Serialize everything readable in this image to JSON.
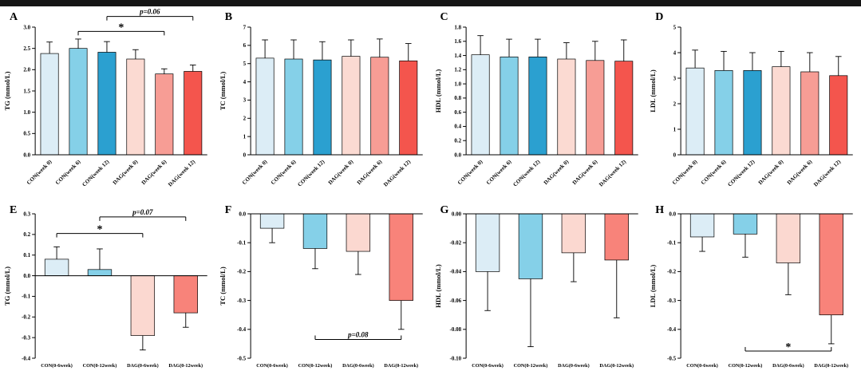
{
  "page": {
    "background": "#ffffff",
    "topbar_color": "#151515"
  },
  "colors": {
    "con_week0": "#dcedf6",
    "con_week6": "#85d0e8",
    "con_week12": "#2ba0d0",
    "dag_week0": "#fbdad2",
    "dag_week6": "#f79d95",
    "dag_week12": "#f4554d",
    "axis": "#000000",
    "error_bar": "#000000"
  },
  "chart_data": [
    {
      "type": "bar",
      "panel": "A",
      "ylabel": "TG (mmol/L)",
      "ylim": [
        0,
        3.0
      ],
      "ytick_step": 0.5,
      "ytick_decimals": 1,
      "categories": [
        "CON(week 0)",
        "CON(week 6)",
        "CON(week 12)",
        "DAG(week 0)",
        "DAG(week 6)",
        "DAG(week 12)"
      ],
      "values": [
        2.38,
        2.5,
        2.41,
        2.25,
        1.9,
        1.96
      ],
      "errors": [
        0.27,
        0.22,
        0.25,
        0.22,
        0.12,
        0.15
      ],
      "bar_colors": [
        "#dcedf6",
        "#85d0e8",
        "#2ba0d0",
        "#fbdad2",
        "#f79d95",
        "#f4554d"
      ],
      "annotations": [
        {
          "from": 2,
          "to": 5,
          "y": 3.25,
          "label": "p=0.06",
          "tick": "down"
        },
        {
          "from": 1,
          "to": 4,
          "y": 2.9,
          "label": "*",
          "tick": "down"
        }
      ]
    },
    {
      "type": "bar",
      "panel": "B",
      "ylabel": "TC (mmol/L)",
      "ylim": [
        0,
        7
      ],
      "ytick_step": 1,
      "ytick_decimals": 0,
      "categories": [
        "CON(week 0)",
        "CON(week 6)",
        "CON(week 12)",
        "DAG(week 0)",
        "DAG(week 6)",
        "DAG(week 12)"
      ],
      "values": [
        5.3,
        5.25,
        5.2,
        5.4,
        5.35,
        5.15
      ],
      "errors": [
        1.0,
        1.05,
        1.0,
        0.9,
        1.0,
        0.95
      ],
      "bar_colors": [
        "#dcedf6",
        "#85d0e8",
        "#2ba0d0",
        "#fbdad2",
        "#f79d95",
        "#f4554d"
      ],
      "annotations": []
    },
    {
      "type": "bar",
      "panel": "C",
      "ylabel": "HDL (mmol/L)",
      "ylim": [
        0,
        1.8
      ],
      "ytick_step": 0.2,
      "ytick_decimals": 1,
      "categories": [
        "CON(week 0)",
        "CON(week 6)",
        "CON(week 12)",
        "DAG(week 0)",
        "DAG(week 6)",
        "DAG(week 12)"
      ],
      "values": [
        1.41,
        1.38,
        1.38,
        1.35,
        1.33,
        1.32
      ],
      "errors": [
        0.27,
        0.25,
        0.25,
        0.23,
        0.27,
        0.3
      ],
      "bar_colors": [
        "#dcedf6",
        "#85d0e8",
        "#2ba0d0",
        "#fbdad2",
        "#f79d95",
        "#f4554d"
      ],
      "annotations": []
    },
    {
      "type": "bar",
      "panel": "D",
      "ylabel": "LDL (mmol/L)",
      "ylim": [
        0,
        5
      ],
      "ytick_step": 1,
      "ytick_decimals": 0,
      "categories": [
        "CON(week 0)",
        "CON(week 6)",
        "CON(week 12)",
        "DAG(week 0)",
        "DAG(week 6)",
        "DAG(week 12)"
      ],
      "values": [
        3.4,
        3.3,
        3.3,
        3.45,
        3.25,
        3.1
      ],
      "errors": [
        0.7,
        0.75,
        0.7,
        0.6,
        0.75,
        0.75
      ],
      "bar_colors": [
        "#dcedf6",
        "#85d0e8",
        "#2ba0d0",
        "#fbdad2",
        "#f79d95",
        "#f4554d"
      ],
      "annotations": []
    },
    {
      "type": "bar",
      "panel": "E",
      "ylabel": "TG (mmol/L)",
      "ylim": [
        -0.4,
        0.3
      ],
      "ytick_step": 0.1,
      "ytick_decimals": 1,
      "categories": [
        "CON(0-6week)",
        "CON(0-12week)",
        "DAG(0-6week)",
        "DAG(0-12week)"
      ],
      "values": [
        0.08,
        0.03,
        -0.29,
        -0.18
      ],
      "errors": [
        0.06,
        0.1,
        0.07,
        0.07
      ],
      "bar_colors": [
        "#dcedf6",
        "#85d0e8",
        "#fbd8d0",
        "#f8837a"
      ],
      "annotations": [
        {
          "from": 1,
          "to": 3,
          "y": 0.285,
          "label": "p=0.07",
          "tick": "down"
        },
        {
          "from": 0,
          "to": 2,
          "y": 0.205,
          "label": "*",
          "tick": "down"
        }
      ]
    },
    {
      "type": "bar",
      "panel": "F",
      "ylabel": "TC (mmol/L)",
      "ylim": [
        -0.5,
        0
      ],
      "ytick_step": 0.1,
      "ytick_decimals": 1,
      "categories": [
        "CON(0-6week)",
        "CON(0-12week)",
        "DAG(0-6week)",
        "DAG(0-12week)"
      ],
      "values": [
        -0.05,
        -0.12,
        -0.13,
        -0.3
      ],
      "errors": [
        0.05,
        0.07,
        0.08,
        0.1
      ],
      "bar_colors": [
        "#dcedf6",
        "#85d0e8",
        "#fbd8d0",
        "#f8837a"
      ],
      "annotations": [
        {
          "from": 1,
          "to": 3,
          "y": -0.435,
          "label": "p=0.08",
          "tick": "up"
        }
      ]
    },
    {
      "type": "bar",
      "panel": "G",
      "ylabel": "HDL (mmol/L)",
      "ylim": [
        -0.1,
        0
      ],
      "ytick_step": 0.02,
      "ytick_decimals": 2,
      "categories": [
        "CON(0-6week)",
        "CON(0-12week)",
        "DAG(0-6week)",
        "DAG(0-12week)"
      ],
      "values": [
        -0.04,
        -0.045,
        -0.027,
        -0.032
      ],
      "errors": [
        0.027,
        0.047,
        0.02,
        0.04
      ],
      "bar_colors": [
        "#dcedf6",
        "#85d0e8",
        "#fbd8d0",
        "#f8837a"
      ],
      "annotations": []
    },
    {
      "type": "bar",
      "panel": "H",
      "ylabel": "LDL (mmol/L)",
      "ylim": [
        -0.5,
        0
      ],
      "ytick_step": 0.1,
      "ytick_decimals": 1,
      "categories": [
        "CON(0-6week)",
        "CON(0-12week)",
        "DAG(0-6week)",
        "DAG(0-12week)"
      ],
      "values": [
        -0.08,
        -0.07,
        -0.17,
        -0.35
      ],
      "errors": [
        0.05,
        0.08,
        0.11,
        0.1
      ],
      "bar_colors": [
        "#dcedf6",
        "#85d0e8",
        "#fbd8d0",
        "#f8837a"
      ],
      "annotations": [
        {
          "from": 1,
          "to": 3,
          "y": -0.475,
          "label": "*",
          "tick": "up"
        }
      ]
    }
  ]
}
